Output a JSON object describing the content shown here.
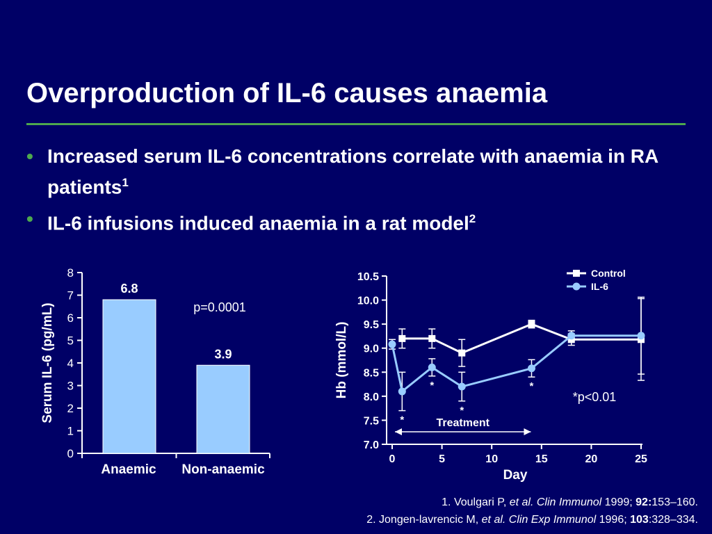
{
  "slide": {
    "title": "Overproduction of IL-6 causes anaemia",
    "bullets": [
      {
        "text": "Increased serum IL-6 concentrations correlate with anaemia in RA patients",
        "sup": "1"
      },
      {
        "text": "IL-6 infusions induced anaemia in a rat model",
        "sup": "2"
      }
    ],
    "bullet_symbol": "•"
  },
  "references": [
    {
      "n": "1. ",
      "author": "Voulgari P, ",
      "etal": "et al.",
      "journal": " Clin Immunol",
      "year": " 1999; ",
      "vol": "92:",
      "pages": "153–160."
    },
    {
      "n": "2. ",
      "author": "Jongen-lavrencic M, ",
      "etal": "et al.",
      "journal": " Clin Exp Immunol",
      "year": " 1996; ",
      "vol": "103",
      "pages": ":328–334."
    }
  ],
  "colors": {
    "background": "#000066",
    "accent_green": "#4ea84e",
    "bar_fill": "#99ccff",
    "control": "#ffffff",
    "il6": "#99ccff"
  },
  "chart_data": [
    {
      "type": "bar",
      "categories": [
        "Anaemic",
        "Non-anaemic"
      ],
      "values": [
        6.8,
        3.9
      ],
      "data_labels": [
        "6.8",
        "3.9"
      ],
      "ylabel": "Serum IL-6 (pg/mL)",
      "ylim": [
        0,
        8
      ],
      "yticks": [
        0,
        1,
        2,
        3,
        4,
        5,
        6,
        7,
        8
      ],
      "annotation": "p=0.0001"
    },
    {
      "type": "line",
      "xlabel": "Day",
      "ylabel": "Hb (mmol/L)",
      "xlim": [
        0,
        25
      ],
      "ylim": [
        7.0,
        10.5
      ],
      "xticks": [
        0,
        5,
        10,
        15,
        20,
        25
      ],
      "yticks": [
        "7.0",
        "7.5",
        "8.0",
        "8.5",
        "9.0",
        "9.5",
        "10.0",
        "10.5"
      ],
      "legend_position": "top-right",
      "series": [
        {
          "name": "Control",
          "marker": "square",
          "x": [
            1,
            4,
            7,
            14,
            18,
            25
          ],
          "y": [
            9.2,
            9.2,
            8.9,
            9.5,
            9.18,
            9.18
          ],
          "err": [
            0.2,
            0.2,
            0.28,
            0.08,
            0.12,
            0.85
          ]
        },
        {
          "name": "IL-6",
          "marker": "circle",
          "x": [
            0,
            1,
            4,
            7,
            14,
            18,
            25
          ],
          "y": [
            9.08,
            8.1,
            8.6,
            8.2,
            8.58,
            9.26,
            9.26
          ],
          "err": [
            0.1,
            0.4,
            0.18,
            0.3,
            0.18,
            0.1,
            0.8
          ]
        }
      ],
      "significance": [
        {
          "x": 1,
          "label": "*"
        },
        {
          "x": 4,
          "label": "*"
        },
        {
          "x": 7,
          "label": "*"
        },
        {
          "x": 14,
          "label": "*"
        }
      ],
      "significance_note": "*p<0.01",
      "treatment": {
        "label": "Treatment",
        "from": 0,
        "to": 14
      }
    }
  ]
}
